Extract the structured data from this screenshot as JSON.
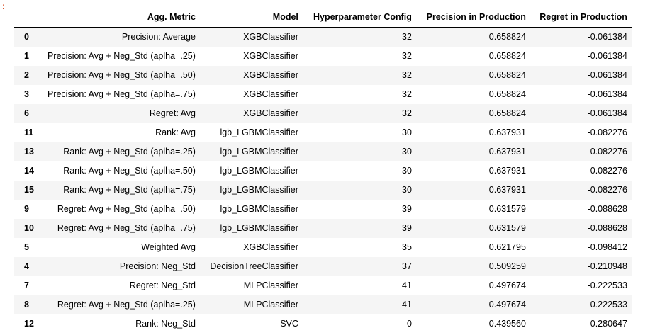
{
  "prompt_marker": ":",
  "table": {
    "columns": [
      "",
      "Agg. Metric",
      "Model",
      "Hyperparameter Config",
      "Precision in Production",
      "Regret in Production"
    ],
    "rows": [
      {
        "index": "0",
        "metric": "Precision: Average",
        "model": "XGBClassifier",
        "hp": "32",
        "precision": "0.658824",
        "regret": "-0.061384"
      },
      {
        "index": "1",
        "metric": "Precision: Avg + Neg_Std (aplha=.25)",
        "model": "XGBClassifier",
        "hp": "32",
        "precision": "0.658824",
        "regret": "-0.061384"
      },
      {
        "index": "2",
        "metric": "Precision: Avg + Neg_Std (aplha=.50)",
        "model": "XGBClassifier",
        "hp": "32",
        "precision": "0.658824",
        "regret": "-0.061384"
      },
      {
        "index": "3",
        "metric": "Precision: Avg + Neg_Std (aplha=.75)",
        "model": "XGBClassifier",
        "hp": "32",
        "precision": "0.658824",
        "regret": "-0.061384"
      },
      {
        "index": "6",
        "metric": "Regret: Avg",
        "model": "XGBClassifier",
        "hp": "32",
        "precision": "0.658824",
        "regret": "-0.061384"
      },
      {
        "index": "11",
        "metric": "Rank: Avg",
        "model": "lgb_LGBMClassifier",
        "hp": "30",
        "precision": "0.637931",
        "regret": "-0.082276"
      },
      {
        "index": "13",
        "metric": "Rank: Avg + Neg_Std (aplha=.25)",
        "model": "lgb_LGBMClassifier",
        "hp": "30",
        "precision": "0.637931",
        "regret": "-0.082276"
      },
      {
        "index": "14",
        "metric": "Rank: Avg + Neg_Std (aplha=.50)",
        "model": "lgb_LGBMClassifier",
        "hp": "30",
        "precision": "0.637931",
        "regret": "-0.082276"
      },
      {
        "index": "15",
        "metric": "Rank: Avg + Neg_Std (aplha=.75)",
        "model": "lgb_LGBMClassifier",
        "hp": "30",
        "precision": "0.637931",
        "regret": "-0.082276"
      },
      {
        "index": "9",
        "metric": "Regret: Avg + Neg_Std (aplha=.50)",
        "model": "lgb_LGBMClassifier",
        "hp": "39",
        "precision": "0.631579",
        "regret": "-0.088628"
      },
      {
        "index": "10",
        "metric": "Regret: Avg + Neg_Std (aplha=.75)",
        "model": "lgb_LGBMClassifier",
        "hp": "39",
        "precision": "0.631579",
        "regret": "-0.088628"
      },
      {
        "index": "5",
        "metric": "Weighted Avg",
        "model": "XGBClassifier",
        "hp": "35",
        "precision": "0.621795",
        "regret": "-0.098412"
      },
      {
        "index": "4",
        "metric": "Precision: Neg_Std",
        "model": "DecisionTreeClassifier",
        "hp": "37",
        "precision": "0.509259",
        "regret": "-0.210948"
      },
      {
        "index": "7",
        "metric": "Regret: Neg_Std",
        "model": "MLPClassifier",
        "hp": "41",
        "precision": "0.497674",
        "regret": "-0.222533"
      },
      {
        "index": "8",
        "metric": "Regret: Avg + Neg_Std (aplha=.25)",
        "model": "MLPClassifier",
        "hp": "41",
        "precision": "0.497674",
        "regret": "-0.222533"
      },
      {
        "index": "12",
        "metric": "Rank: Neg_Std",
        "model": "SVC",
        "hp": "0",
        "precision": "0.439560",
        "regret": "-0.280647"
      }
    ]
  }
}
